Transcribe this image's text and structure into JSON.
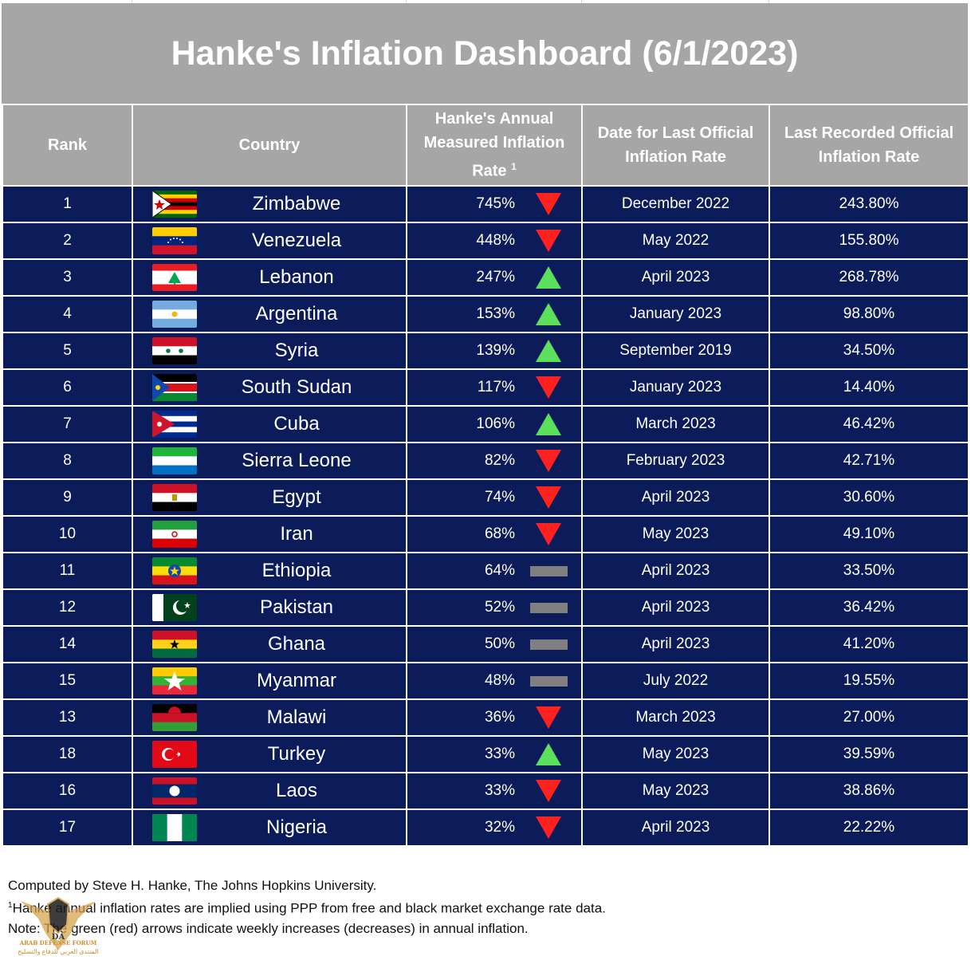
{
  "title": "Hanke's Inflation Dashboard (6/1/2023)",
  "headers": {
    "rank": "Rank",
    "country": "Country",
    "hanke_line1": "Hanke's Annual",
    "hanke_line2": "Measured Inflation",
    "hanke_line3": "Rate",
    "hanke_sup": "1",
    "date_line1": "Date for Last Official",
    "date_line2": "Inflation Rate",
    "last_line1": "Last Recorded Official",
    "last_line2": "Inflation Rate"
  },
  "colors": {
    "header_bg": "#a6a6a6",
    "row_bg": "#0c1b5a",
    "down": "#ff2020",
    "up": "#5ce05c",
    "flat": "#808080"
  },
  "rows": [
    {
      "rank": "1",
      "country": "Zimbabwe",
      "flag": "zimbabwe-flag",
      "hanke": "745%",
      "trend": "down",
      "date": "December 2022",
      "official": "243.80%"
    },
    {
      "rank": "2",
      "country": "Venezuela",
      "flag": "venezuela-flag",
      "hanke": "448%",
      "trend": "down",
      "date": "May 2022",
      "official": "155.80%"
    },
    {
      "rank": "3",
      "country": "Lebanon",
      "flag": "lebanon-flag",
      "hanke": "247%",
      "trend": "up",
      "date": "April 2023",
      "official": "268.78%"
    },
    {
      "rank": "4",
      "country": "Argentina",
      "flag": "argentina-flag",
      "hanke": "153%",
      "trend": "up",
      "date": "January 2023",
      "official": "98.80%"
    },
    {
      "rank": "5",
      "country": "Syria",
      "flag": "syria-flag",
      "hanke": "139%",
      "trend": "up",
      "date": "September 2019",
      "official": "34.50%"
    },
    {
      "rank": "6",
      "country": "South Sudan",
      "flag": "south-sudan-flag",
      "hanke": "117%",
      "trend": "down",
      "date": "January 2023",
      "official": "14.40%"
    },
    {
      "rank": "7",
      "country": "Cuba",
      "flag": "cuba-flag",
      "hanke": "106%",
      "trend": "up",
      "date": "March 2023",
      "official": "46.42%"
    },
    {
      "rank": "8",
      "country": "Sierra Leone",
      "flag": "sierra-leone-flag",
      "hanke": "82%",
      "trend": "down",
      "date": "February 2023",
      "official": "42.71%"
    },
    {
      "rank": "9",
      "country": "Egypt",
      "flag": "egypt-flag",
      "hanke": "74%",
      "trend": "down",
      "date": "April 2023",
      "official": "30.60%"
    },
    {
      "rank": "10",
      "country": "Iran",
      "flag": "iran-flag",
      "hanke": "68%",
      "trend": "down",
      "date": "May 2023",
      "official": "49.10%"
    },
    {
      "rank": "11",
      "country": "Ethiopia",
      "flag": "ethiopia-flag",
      "hanke": "64%",
      "trend": "flat",
      "date": "April 2023",
      "official": "33.50%"
    },
    {
      "rank": "12",
      "country": "Pakistan",
      "flag": "pakistan-flag",
      "hanke": "52%",
      "trend": "flat",
      "date": "April 2023",
      "official": "36.42%"
    },
    {
      "rank": "14",
      "country": "Ghana",
      "flag": "ghana-flag",
      "hanke": "50%",
      "trend": "flat",
      "date": "April 2023",
      "official": "41.20%"
    },
    {
      "rank": "15",
      "country": "Myanmar",
      "flag": "myanmar-flag",
      "hanke": "48%",
      "trend": "flat",
      "date": "July 2022",
      "official": "19.55%"
    },
    {
      "rank": "13",
      "country": "Malawi",
      "flag": "malawi-flag",
      "hanke": "36%",
      "trend": "down",
      "date": "March 2023",
      "official": "27.00%"
    },
    {
      "rank": "18",
      "country": "Turkey",
      "flag": "turkey-flag",
      "hanke": "33%",
      "trend": "up",
      "date": "May 2023",
      "official": "39.59%"
    },
    {
      "rank": "16",
      "country": "Laos",
      "flag": "laos-flag",
      "hanke": "33%",
      "trend": "down",
      "date": "May 2023",
      "official": "38.86%"
    },
    {
      "rank": "17",
      "country": "Nigeria",
      "flag": "nigeria-flag",
      "hanke": "32%",
      "trend": "down",
      "date": "April 2023",
      "official": "22.22%"
    }
  ],
  "footnotes": {
    "line1": "Computed by Steve H. Hanke, The Johns Hopkins University.",
    "line2_sup": "1",
    "line2": "Hanke annual inflation rates are implied using PPP from free and black market exchange rate data.",
    "line3": "Note: The green (red) arrows indicate weekly increases (decreases) in annual inflation."
  },
  "watermark": {
    "logo_text": "DA",
    "title": "ARAB DEFENSE FORUM",
    "subtitle": "المنتدى العربي للدفاع والتسليح"
  }
}
